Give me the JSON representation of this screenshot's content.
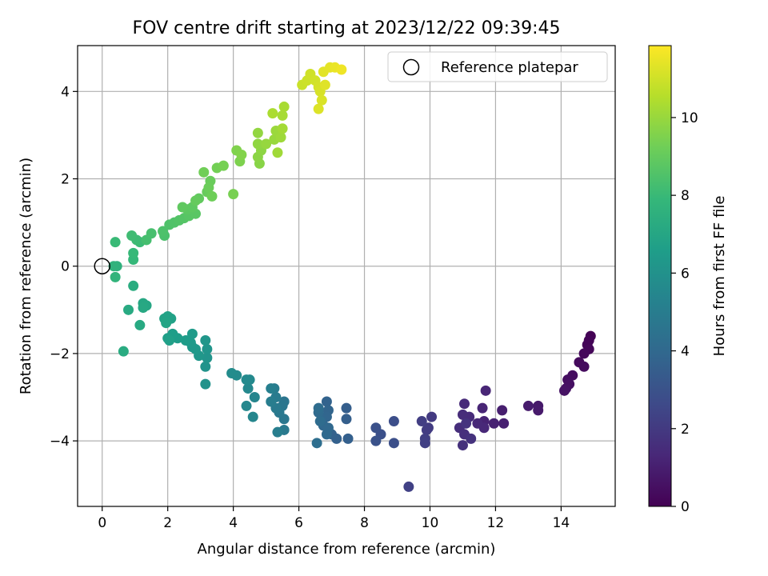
{
  "chart_data": {
    "type": "scatter",
    "title": "FOV centre drift starting at 2023/12/22 09:39:45",
    "xlabel": "Angular distance from reference (arcmin)",
    "ylabel": "Rotation from reference (arcmin)",
    "xlim": [
      -0.75,
      15.65
    ],
    "ylim": [
      -5.5,
      5.05
    ],
    "xticks": [
      0,
      2,
      4,
      6,
      8,
      10,
      12,
      14
    ],
    "yticks": [
      -4,
      -2,
      0,
      2,
      4
    ],
    "grid": true,
    "legend": {
      "placement": "top-right",
      "entries": [
        "Reference platepar"
      ]
    },
    "reference_point": {
      "x": 0,
      "y": 0
    },
    "colorbar": {
      "label": "Hours from first FF file",
      "range": [
        0,
        11.85
      ],
      "ticks": [
        0,
        2,
        4,
        6,
        8,
        10
      ],
      "colormap": "viridis",
      "colors": [
        "#440154",
        "#482878",
        "#3e4a89",
        "#31688e",
        "#26828e",
        "#1f9e89",
        "#35b779",
        "#6ece58",
        "#b5de2b",
        "#fde725"
      ]
    },
    "series": [
      {
        "color_by": "hours",
        "points": [
          [
            14.9,
            -1.6,
            0.05
          ],
          [
            14.85,
            -1.7,
            0.1
          ],
          [
            14.8,
            -1.8,
            0.15
          ],
          [
            14.85,
            -1.9,
            0.2
          ],
          [
            14.7,
            -2.0,
            0.25
          ],
          [
            14.55,
            -2.2,
            0.3
          ],
          [
            14.7,
            -2.3,
            0.35
          ],
          [
            14.35,
            -2.5,
            0.4
          ],
          [
            14.2,
            -2.6,
            0.45
          ],
          [
            14.25,
            -2.7,
            0.5
          ],
          [
            14.15,
            -2.8,
            0.55
          ],
          [
            14.1,
            -2.85,
            0.6
          ],
          [
            13.3,
            -3.2,
            0.8
          ],
          [
            13.3,
            -3.3,
            0.85
          ],
          [
            13.0,
            -3.2,
            0.9
          ],
          [
            12.2,
            -3.3,
            1.0
          ],
          [
            12.25,
            -3.6,
            1.05
          ],
          [
            11.95,
            -3.6,
            1.1
          ],
          [
            11.65,
            -3.55,
            1.15
          ],
          [
            11.6,
            -3.25,
            1.2
          ],
          [
            11.7,
            -2.85,
            1.25
          ],
          [
            11.65,
            -3.7,
            1.3
          ],
          [
            11.45,
            -3.6,
            1.35
          ],
          [
            11.05,
            -3.15,
            1.4
          ],
          [
            11.2,
            -3.45,
            1.45
          ],
          [
            11.0,
            -3.4,
            1.5
          ],
          [
            10.9,
            -3.7,
            1.55
          ],
          [
            11.05,
            -3.85,
            1.6
          ],
          [
            11.0,
            -4.1,
            1.65
          ],
          [
            11.25,
            -3.95,
            1.7
          ],
          [
            11.1,
            -3.6,
            1.75
          ],
          [
            10.05,
            -3.45,
            2.0
          ],
          [
            9.95,
            -3.7,
            2.05
          ],
          [
            9.9,
            -3.75,
            2.1
          ],
          [
            9.75,
            -3.55,
            2.15
          ],
          [
            9.85,
            -3.95,
            2.2
          ],
          [
            9.85,
            -4.05,
            2.25
          ],
          [
            9.35,
            -5.05,
            2.3
          ],
          [
            8.9,
            -3.55,
            2.8
          ],
          [
            8.9,
            -4.05,
            2.85
          ],
          [
            8.5,
            -3.85,
            2.9
          ],
          [
            8.35,
            -3.7,
            2.95
          ],
          [
            8.35,
            -4.0,
            3.0
          ],
          [
            7.45,
            -3.25,
            3.5
          ],
          [
            7.45,
            -3.5,
            3.55
          ],
          [
            7.5,
            -3.95,
            3.6
          ],
          [
            7.15,
            -3.95,
            3.65
          ],
          [
            7.0,
            -3.85,
            3.7
          ],
          [
            6.85,
            -3.1,
            3.75
          ],
          [
            6.9,
            -3.3,
            3.8
          ],
          [
            6.85,
            -3.45,
            3.85
          ],
          [
            6.7,
            -3.5,
            3.9
          ],
          [
            6.75,
            -3.65,
            3.95
          ],
          [
            6.9,
            -3.7,
            4.0
          ],
          [
            6.85,
            -3.85,
            4.05
          ],
          [
            6.6,
            -3.35,
            4.1
          ],
          [
            6.65,
            -3.55,
            4.15
          ],
          [
            6.6,
            -3.25,
            4.2
          ],
          [
            6.55,
            -4.05,
            4.25
          ],
          [
            5.55,
            -3.1,
            4.6
          ],
          [
            5.5,
            -3.2,
            4.65
          ],
          [
            5.55,
            -3.5,
            4.7
          ],
          [
            5.4,
            -3.35,
            4.75
          ],
          [
            5.55,
            -3.75,
            4.8
          ],
          [
            5.3,
            -3.25,
            4.85
          ],
          [
            5.3,
            -3.0,
            4.9
          ],
          [
            5.25,
            -2.8,
            4.95
          ],
          [
            5.15,
            -3.1,
            5.0
          ],
          [
            5.35,
            -3.8,
            5.05
          ],
          [
            5.15,
            -2.8,
            5.1
          ],
          [
            4.65,
            -3.0,
            5.4
          ],
          [
            4.6,
            -3.45,
            5.45
          ],
          [
            4.4,
            -3.2,
            5.5
          ],
          [
            4.45,
            -2.8,
            5.55
          ],
          [
            4.5,
            -2.6,
            5.6
          ],
          [
            4.4,
            -2.6,
            5.65
          ],
          [
            4.1,
            -2.5,
            5.7
          ],
          [
            3.95,
            -2.45,
            5.75
          ],
          [
            3.15,
            -2.7,
            6.0
          ],
          [
            3.15,
            -2.3,
            6.05
          ],
          [
            3.2,
            -2.1,
            6.1
          ],
          [
            3.2,
            -1.9,
            6.15
          ],
          [
            3.15,
            -1.7,
            6.2
          ],
          [
            2.95,
            -2.05,
            6.25
          ],
          [
            2.75,
            -1.85,
            6.3
          ],
          [
            2.85,
            -1.9,
            6.35
          ],
          [
            2.7,
            -1.75,
            6.4
          ],
          [
            2.75,
            -1.55,
            6.45
          ],
          [
            2.55,
            -1.7,
            6.5
          ],
          [
            2.3,
            -1.65,
            6.55
          ],
          [
            2.15,
            -1.55,
            6.6
          ],
          [
            2.0,
            -1.65,
            6.65
          ],
          [
            2.05,
            -1.7,
            6.7
          ],
          [
            2.1,
            -1.2,
            6.75
          ],
          [
            2.0,
            -1.15,
            6.8
          ],
          [
            1.9,
            -1.2,
            6.85
          ],
          [
            1.95,
            -1.3,
            6.9
          ],
          [
            1.35,
            -0.9,
            7.0
          ],
          [
            1.25,
            -0.85,
            7.05
          ],
          [
            1.25,
            -0.95,
            7.1
          ],
          [
            1.15,
            -1.35,
            7.15
          ],
          [
            0.8,
            -1.0,
            7.2
          ],
          [
            0.65,
            -1.95,
            7.25
          ],
          [
            0.95,
            -0.45,
            7.3
          ],
          [
            0.45,
            -0.0,
            7.6
          ],
          [
            0.35,
            -0.0,
            7.65
          ],
          [
            0.4,
            -0.25,
            7.7
          ],
          [
            0.95,
            0.15,
            7.9
          ],
          [
            0.95,
            0.3,
            7.95
          ],
          [
            0.4,
            0.55,
            8.0
          ],
          [
            1.15,
            0.55,
            8.05
          ],
          [
            1.05,
            0.6,
            8.1
          ],
          [
            0.9,
            0.7,
            8.15
          ],
          [
            1.35,
            0.6,
            8.3
          ],
          [
            1.5,
            0.75,
            8.35
          ],
          [
            1.9,
            0.7,
            8.4
          ],
          [
            1.85,
            0.8,
            8.45
          ],
          [
            2.05,
            0.95,
            8.5
          ],
          [
            2.2,
            1.0,
            8.55
          ],
          [
            2.35,
            1.05,
            8.6
          ],
          [
            2.5,
            1.1,
            8.65
          ],
          [
            2.65,
            1.15,
            8.7
          ],
          [
            2.85,
            1.2,
            8.75
          ],
          [
            2.6,
            1.3,
            8.8
          ],
          [
            2.75,
            1.35,
            8.85
          ],
          [
            2.45,
            1.35,
            8.9
          ],
          [
            2.95,
            1.55,
            8.95
          ],
          [
            2.85,
            1.5,
            9.0
          ],
          [
            3.2,
            1.7,
            9.05
          ],
          [
            3.3,
            1.95,
            9.1
          ],
          [
            3.25,
            1.8,
            9.15
          ],
          [
            3.35,
            1.6,
            9.2
          ],
          [
            3.1,
            2.15,
            9.25
          ],
          [
            3.5,
            2.25,
            9.3
          ],
          [
            3.7,
            2.3,
            9.35
          ],
          [
            4.0,
            1.65,
            9.4
          ],
          [
            4.2,
            2.4,
            9.5
          ],
          [
            4.1,
            2.65,
            9.55
          ],
          [
            4.25,
            2.55,
            9.6
          ],
          [
            4.8,
            2.35,
            9.7
          ],
          [
            4.75,
            2.5,
            9.75
          ],
          [
            4.85,
            2.65,
            9.8
          ],
          [
            4.75,
            2.8,
            9.85
          ],
          [
            4.75,
            3.05,
            9.9
          ],
          [
            5.0,
            2.8,
            9.95
          ],
          [
            5.25,
            2.9,
            10.0
          ],
          [
            5.3,
            3.1,
            10.05
          ],
          [
            5.45,
            2.95,
            10.1
          ],
          [
            5.35,
            2.6,
            10.15
          ],
          [
            5.5,
            3.15,
            10.2
          ],
          [
            5.5,
            3.45,
            10.25
          ],
          [
            5.55,
            3.65,
            10.3
          ],
          [
            5.2,
            3.5,
            10.35
          ],
          [
            6.1,
            4.15,
            10.9
          ],
          [
            6.25,
            4.25,
            10.95
          ],
          [
            6.35,
            4.4,
            11.0
          ],
          [
            6.5,
            4.25,
            11.05
          ],
          [
            6.6,
            4.1,
            11.1
          ],
          [
            6.65,
            4.0,
            11.15
          ],
          [
            6.7,
            3.8,
            11.2
          ],
          [
            6.6,
            3.6,
            11.25
          ],
          [
            6.8,
            4.15,
            11.3
          ],
          [
            6.75,
            4.45,
            11.35
          ],
          [
            6.95,
            4.55,
            11.4
          ],
          [
            7.1,
            4.55,
            11.5
          ],
          [
            7.3,
            4.5,
            11.6
          ]
        ]
      }
    ]
  }
}
